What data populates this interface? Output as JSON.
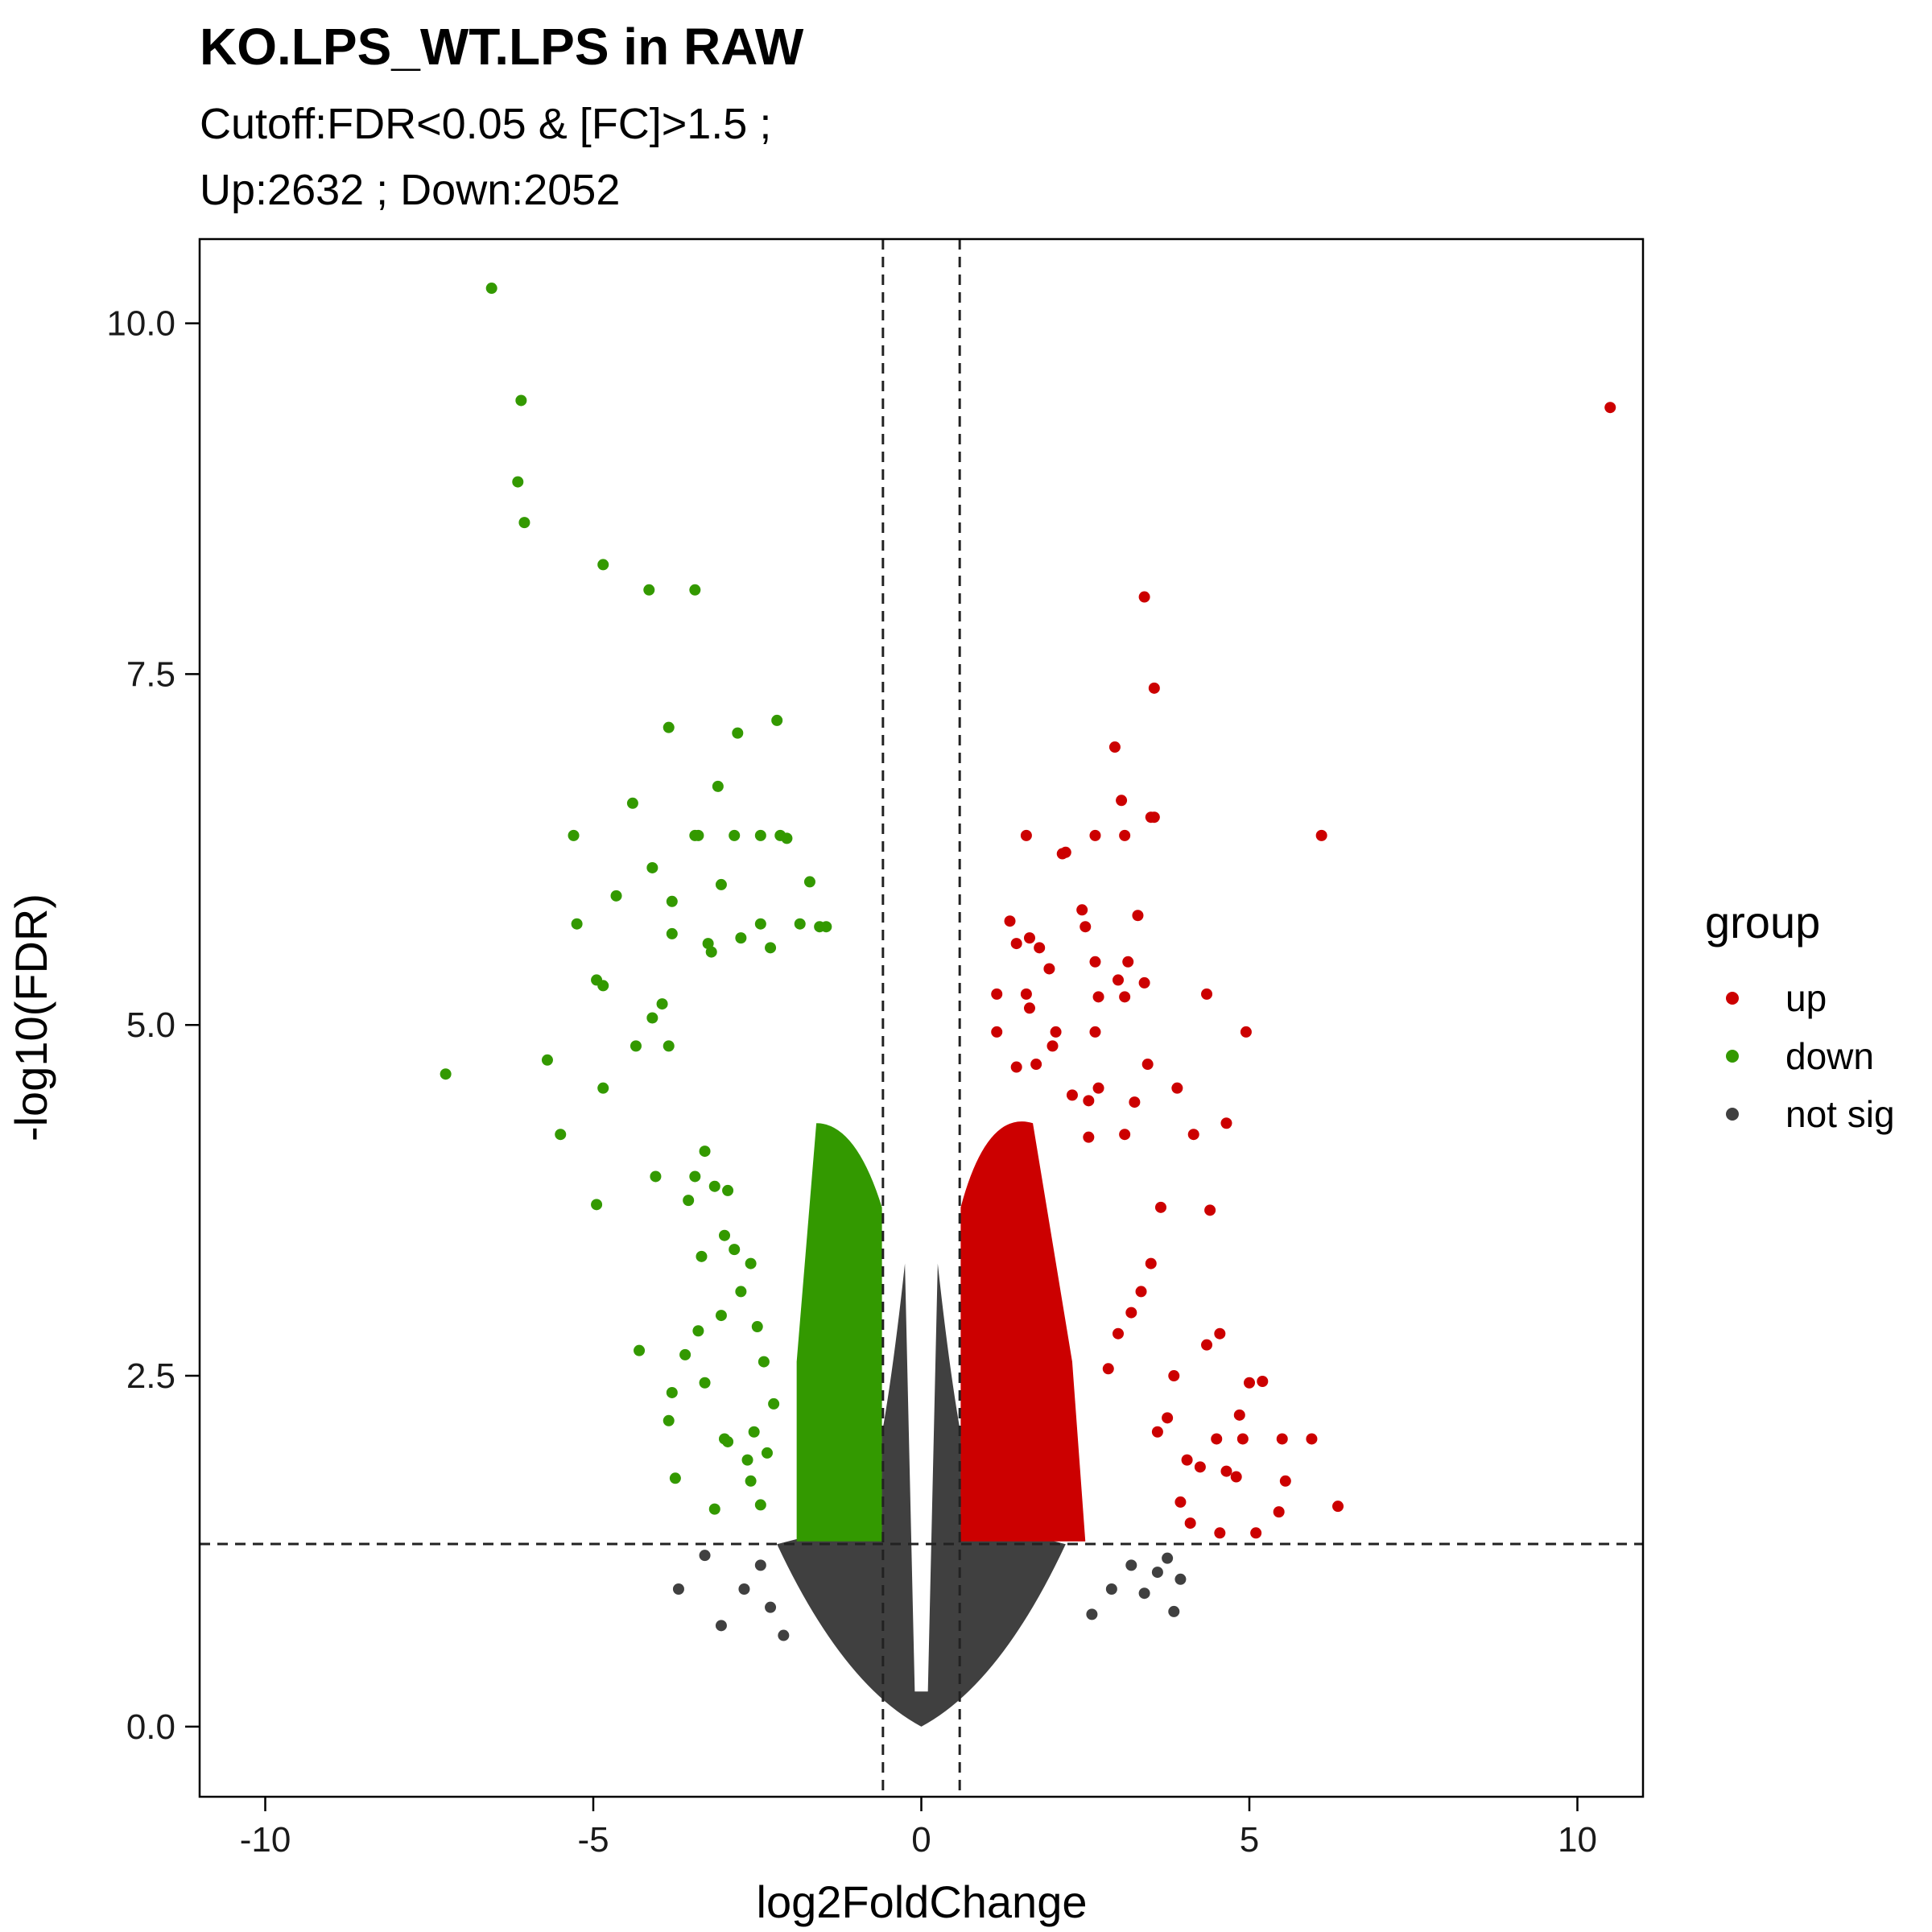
{
  "chart_data": {
    "type": "scatter",
    "title": "KO.LPS_WT.LPS in RAW",
    "subtitle_lines": [
      "Cutoff:FDR<0.05 & [FC]>1.5 ;",
      "Up:2632 ; Down:2052"
    ],
    "xlabel": "log2FoldChange",
    "ylabel": "-log10(FDR)",
    "xlim": [
      -11,
      11
    ],
    "ylim": [
      -0.5,
      10.6
    ],
    "xticks": [
      -10,
      -5,
      0,
      5,
      10
    ],
    "xtick_labels": [
      "-10",
      "-5",
      "0",
      "5",
      "10"
    ],
    "yticks": [
      0.0,
      2.5,
      5.0,
      7.5,
      10.0
    ],
    "ytick_labels": [
      "0.0",
      "2.5",
      "5.0",
      "7.5",
      "10.0"
    ],
    "thresholds": {
      "vlines": [
        -0.585,
        0.585
      ],
      "hline": 1.301
    },
    "grid": false,
    "legend": {
      "title": "group",
      "position": "right",
      "items": [
        {
          "label": "up",
          "color": "#cc0000"
        },
        {
          "label": "down",
          "color": "#339900"
        },
        {
          "label": "not sig",
          "color": "#404040"
        }
      ]
    },
    "counts": {
      "up": 2632,
      "down": 2052
    },
    "series": [
      {
        "name": "up",
        "color": "#cc0000",
        "points": [
          [
            10.5,
            9.4
          ],
          [
            3.4,
            8.05
          ],
          [
            3.55,
            7.4
          ],
          [
            2.95,
            6.98
          ],
          [
            3.05,
            6.6
          ],
          [
            3.5,
            6.48
          ],
          [
            3.55,
            6.48
          ],
          [
            6.1,
            6.35
          ],
          [
            1.6,
            6.35
          ],
          [
            2.65,
            6.35
          ],
          [
            3.1,
            6.35
          ],
          [
            2.15,
            6.22
          ],
          [
            2.2,
            6.23
          ],
          [
            2.45,
            5.82
          ],
          [
            3.3,
            5.78
          ],
          [
            1.35,
            5.74
          ],
          [
            2.5,
            5.7
          ],
          [
            1.65,
            5.62
          ],
          [
            1.45,
            5.58
          ],
          [
            1.8,
            5.55
          ],
          [
            2.65,
            5.45
          ],
          [
            3.15,
            5.45
          ],
          [
            1.95,
            5.4
          ],
          [
            3.0,
            5.32
          ],
          [
            3.4,
            5.3
          ],
          [
            4.35,
            5.22
          ],
          [
            1.6,
            5.22
          ],
          [
            1.15,
            5.22
          ],
          [
            2.7,
            5.2
          ],
          [
            3.1,
            5.2
          ],
          [
            1.65,
            5.12
          ],
          [
            4.95,
            4.95
          ],
          [
            2.05,
            4.95
          ],
          [
            2.65,
            4.95
          ],
          [
            1.15,
            4.95
          ],
          [
            2.0,
            4.85
          ],
          [
            1.75,
            4.72
          ],
          [
            3.45,
            4.72
          ],
          [
            1.45,
            4.7
          ],
          [
            2.7,
            4.55
          ],
          [
            3.9,
            4.55
          ],
          [
            2.3,
            4.5
          ],
          [
            2.55,
            4.46
          ],
          [
            3.25,
            4.45
          ],
          [
            4.65,
            4.3
          ],
          [
            4.15,
            4.22
          ],
          [
            2.55,
            4.2
          ],
          [
            3.1,
            4.22
          ],
          [
            3.65,
            3.7
          ],
          [
            4.4,
            3.68
          ],
          [
            4.55,
            2.8
          ],
          [
            4.35,
            2.72
          ],
          [
            5.0,
            2.45
          ],
          [
            5.2,
            2.46
          ],
          [
            5.5,
            2.05
          ],
          [
            5.95,
            2.05
          ],
          [
            4.85,
            2.22
          ],
          [
            4.9,
            2.05
          ],
          [
            4.5,
            2.05
          ],
          [
            4.65,
            1.82
          ],
          [
            5.55,
            1.75
          ],
          [
            4.8,
            1.78
          ],
          [
            6.35,
            1.57
          ],
          [
            5.45,
            1.53
          ],
          [
            5.1,
            1.38
          ],
          [
            4.55,
            1.38
          ],
          [
            3.5,
            3.3
          ],
          [
            3.35,
            3.1
          ],
          [
            3.2,
            2.95
          ],
          [
            3.0,
            2.8
          ],
          [
            2.85,
            2.55
          ],
          [
            3.85,
            2.5
          ],
          [
            3.75,
            2.2
          ],
          [
            3.6,
            2.1
          ],
          [
            4.05,
            1.9
          ],
          [
            4.25,
            1.85
          ],
          [
            3.95,
            1.6
          ],
          [
            4.1,
            1.45
          ]
        ]
      },
      {
        "name": "down",
        "color": "#339900",
        "points": [
          [
            -6.55,
            10.25
          ],
          [
            -6.1,
            9.45
          ],
          [
            -6.15,
            8.87
          ],
          [
            -6.05,
            8.58
          ],
          [
            -4.85,
            8.28
          ],
          [
            -4.15,
            8.1
          ],
          [
            -3.45,
            8.1
          ],
          [
            -2.2,
            7.17
          ],
          [
            -3.85,
            7.12
          ],
          [
            -2.8,
            7.08
          ],
          [
            -3.1,
            6.7
          ],
          [
            -4.4,
            6.58
          ],
          [
            -5.3,
            6.35
          ],
          [
            -3.4,
            6.35
          ],
          [
            -3.45,
            6.35
          ],
          [
            -2.85,
            6.35
          ],
          [
            -2.15,
            6.35
          ],
          [
            -2.05,
            6.33
          ],
          [
            -2.45,
            6.35
          ],
          [
            -4.1,
            6.12
          ],
          [
            -1.7,
            6.02
          ],
          [
            -3.05,
            6.0
          ],
          [
            -4.65,
            5.92
          ],
          [
            -3.8,
            5.88
          ],
          [
            -5.25,
            5.72
          ],
          [
            -2.45,
            5.72
          ],
          [
            -1.85,
            5.72
          ],
          [
            -1.45,
            5.7
          ],
          [
            -1.55,
            5.7
          ],
          [
            -3.8,
            5.65
          ],
          [
            -2.75,
            5.62
          ],
          [
            -3.25,
            5.58
          ],
          [
            -2.3,
            5.55
          ],
          [
            -3.2,
            5.52
          ],
          [
            -4.95,
            5.32
          ],
          [
            -4.85,
            5.28
          ],
          [
            -4.1,
            5.05
          ],
          [
            -3.95,
            5.15
          ],
          [
            -5.7,
            4.75
          ],
          [
            -4.35,
            4.85
          ],
          [
            -3.85,
            4.85
          ],
          [
            -7.25,
            4.65
          ],
          [
            -4.85,
            4.55
          ],
          [
            -5.5,
            4.22
          ],
          [
            -4.95,
            3.72
          ],
          [
            -4.05,
            3.92
          ],
          [
            -3.45,
            3.92
          ],
          [
            -3.15,
            3.85
          ],
          [
            -2.95,
            3.82
          ],
          [
            -3.3,
            4.1
          ],
          [
            -3.55,
            3.75
          ],
          [
            -4.3,
            2.68
          ],
          [
            -3.6,
            2.65
          ],
          [
            -3.4,
            2.82
          ],
          [
            -3.05,
            2.93
          ],
          [
            -3.3,
            2.45
          ],
          [
            -3.8,
            2.38
          ],
          [
            -3.85,
            2.18
          ],
          [
            -3.0,
            2.05
          ],
          [
            -2.95,
            2.03
          ],
          [
            -3.75,
            1.77
          ],
          [
            -3.15,
            1.55
          ],
          [
            -2.6,
            1.75
          ],
          [
            -2.45,
            1.58
          ],
          [
            -3.35,
            3.35
          ],
          [
            -3.0,
            3.5
          ],
          [
            -2.85,
            3.4
          ],
          [
            -2.6,
            3.3
          ],
          [
            -2.75,
            3.1
          ],
          [
            -2.5,
            2.85
          ],
          [
            -2.4,
            2.6
          ],
          [
            -2.25,
            2.3
          ],
          [
            -2.55,
            2.1
          ],
          [
            -2.65,
            1.9
          ],
          [
            -2.35,
            1.95
          ]
        ]
      }
    ]
  }
}
